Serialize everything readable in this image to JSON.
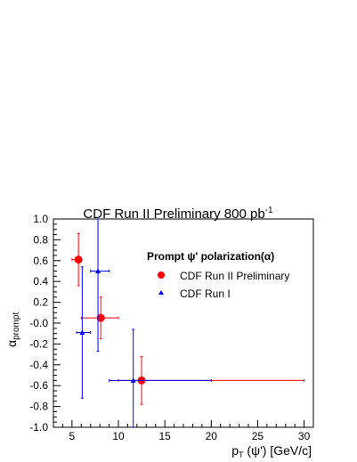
{
  "chart_data": {
    "type": "scatter",
    "title": "CDF Run II Preliminary 800 pb",
    "title_sup": "-1",
    "xlabel_main": "p",
    "xlabel_sub": "T",
    "xlabel_rest": " (ψ') [GeV/c]",
    "ylabel_main": "α",
    "ylabel_sub": "prompt",
    "xlim": [
      3,
      31
    ],
    "ylim": [
      -1.0,
      1.0
    ],
    "x_ticks": [
      5,
      10,
      15,
      20,
      25,
      30
    ],
    "x_tick_labels": [
      "5",
      "10",
      "15",
      "20",
      "25",
      "30"
    ],
    "y_ticks": [
      -1.0,
      -0.8,
      -0.6,
      -0.4,
      -0.2,
      0.0,
      0.2,
      0.4,
      0.6,
      0.8,
      1.0
    ],
    "y_tick_labels": [
      "-1.0",
      "-0.8",
      "-0.6",
      "-0.4",
      "-0.2",
      "-0.0",
      "0.2",
      "0.4",
      "0.6",
      "0.8",
      "1.0"
    ],
    "grid": false,
    "legend_title": "Prompt ψ' polarization(α)",
    "legend_position": "top-right",
    "series": [
      {
        "name": "CDF Run II Preliminary",
        "marker": "circle",
        "color": "#ff0000",
        "points": [
          {
            "x": 5.7,
            "y": 0.61,
            "xlo": 5.0,
            "xhi": 6.0,
            "ylo": 0.36,
            "yhi": 0.86
          },
          {
            "x": 8.1,
            "y": 0.05,
            "xlo": 6.0,
            "xhi": 10.0,
            "ylo": -0.15,
            "yhi": 0.25
          },
          {
            "x": 12.5,
            "y": -0.55,
            "xlo": 10.0,
            "xhi": 30.0,
            "ylo": -0.78,
            "yhi": -0.32
          }
        ]
      },
      {
        "name": "CDF Run I",
        "marker": "triangle",
        "color": "#0000ff",
        "points": [
          {
            "x": 6.1,
            "y": -0.09,
            "xlo": 5.5,
            "xhi": 7.0,
            "ylo": -0.72,
            "yhi": 0.54
          },
          {
            "x": 7.8,
            "y": 0.5,
            "xlo": 7.0,
            "xhi": 9.0,
            "ylo": -0.27,
            "yhi": 1.0
          },
          {
            "x": 11.6,
            "y": -0.55,
            "xlo": 9.0,
            "xhi": 20.0,
            "ylo": -1.0,
            "yhi": -0.06
          }
        ]
      }
    ]
  }
}
